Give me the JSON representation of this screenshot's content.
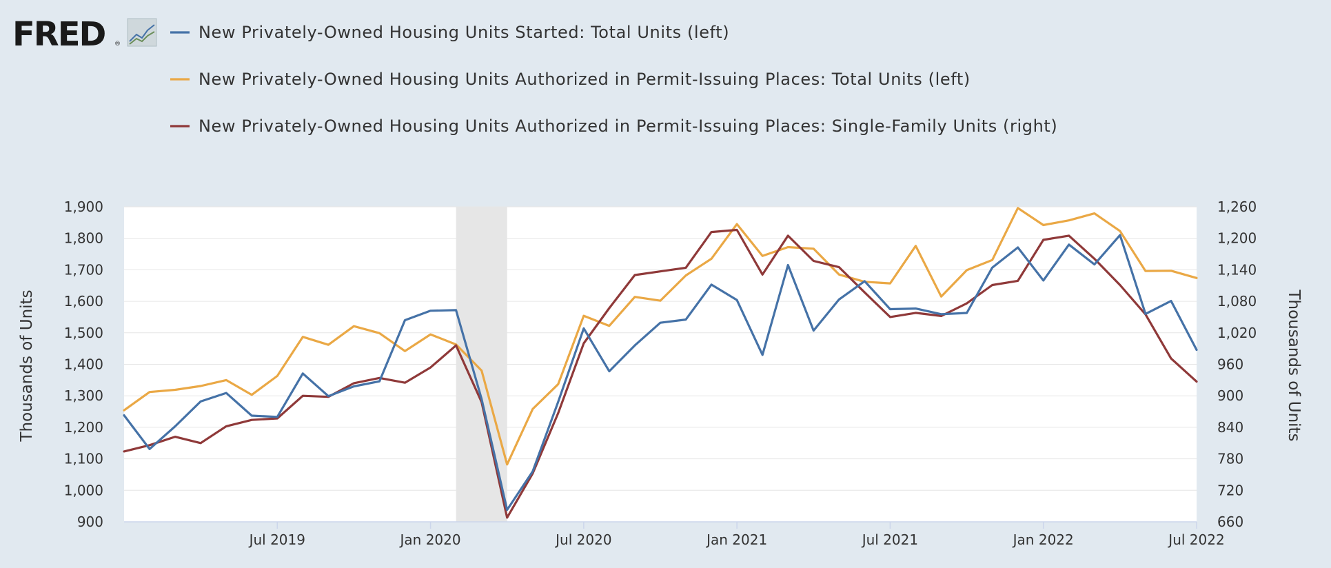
{
  "logo": {
    "text": "FRED",
    "registered": "®",
    "icon": "line-chart-icon"
  },
  "colors": {
    "background": "#e1e9f0",
    "plot_background": "#ffffff",
    "gridline": "#e6e6e6",
    "recession": "#e6e6e6",
    "series": [
      "#4572a7",
      "#eaa845",
      "#8f3939"
    ]
  },
  "chart_data": {
    "type": "line",
    "x": [
      "2019-01",
      "2019-02",
      "2019-03",
      "2019-04",
      "2019-05",
      "2019-06",
      "2019-07",
      "2019-08",
      "2019-09",
      "2019-10",
      "2019-11",
      "2019-12",
      "2020-01",
      "2020-02",
      "2020-03",
      "2020-04",
      "2020-05",
      "2020-06",
      "2020-07",
      "2020-08",
      "2020-09",
      "2020-10",
      "2020-11",
      "2020-12",
      "2021-01",
      "2021-02",
      "2021-03",
      "2021-04",
      "2021-05",
      "2021-06",
      "2021-07",
      "2021-08",
      "2021-09",
      "2021-10",
      "2021-11",
      "2021-12",
      "2022-01",
      "2022-02",
      "2022-03",
      "2022-04",
      "2022-05",
      "2022-06",
      "2022-07"
    ],
    "series": [
      {
        "name": "New Privately-Owned Housing Units Started: Total Units (left)",
        "axis": "left",
        "color": "#4572a7",
        "values": [
          1238,
          1131,
          1203,
          1282,
          1309,
          1237,
          1233,
          1371,
          1299,
          1330,
          1346,
          1540,
          1570,
          1572,
          1290,
          938,
          1060,
          1281,
          1514,
          1378,
          1460,
          1532,
          1542,
          1653,
          1604,
          1430,
          1715,
          1507,
          1606,
          1664,
          1575,
          1577,
          1559,
          1563,
          1707,
          1771,
          1666,
          1780,
          1717,
          1810,
          1560,
          1601,
          1446
        ]
      },
      {
        "name": "New Privately-Owned Housing Units Authorized in Permit-Issuing Places: Total Units (left)",
        "axis": "left",
        "color": "#eaa845",
        "values": [
          1254,
          1312,
          1319,
          1331,
          1350,
          1303,
          1363,
          1487,
          1462,
          1521,
          1499,
          1442,
          1495,
          1463,
          1380,
          1082,
          1258,
          1337,
          1554,
          1522,
          1614,
          1602,
          1682,
          1735,
          1845,
          1744,
          1772,
          1767,
          1685,
          1662,
          1657,
          1776,
          1615,
          1699,
          1731,
          1896,
          1842,
          1857,
          1879,
          1823,
          1696,
          1697,
          1674
        ]
      },
      {
        "name": "New Privately-Owned Housing Units Authorized in Permit-Issuing Places: Single-Family Units (right)",
        "axis": "right",
        "color": "#8f3939",
        "values": [
          794,
          806,
          822,
          810,
          842,
          854,
          857,
          900,
          898,
          924,
          934,
          925,
          954,
          996,
          888,
          668,
          752,
          867,
          1000,
          1067,
          1130,
          1137,
          1144,
          1212,
          1216,
          1131,
          1205,
          1157,
          1145,
          1097,
          1050,
          1058,
          1052,
          1076,
          1111,
          1119,
          1197,
          1205,
          1161,
          1111,
          1055,
          971,
          927
        ]
      }
    ],
    "recession": [
      "2020-02",
      "2020-04"
    ],
    "x_ticks": [
      "Jul 2019",
      "Jan 2020",
      "Jul 2020",
      "Jan 2021",
      "Jul 2021",
      "Jan 2022",
      "Jul 2022"
    ],
    "x_tick_dates": [
      "2019-07",
      "2020-01",
      "2020-07",
      "2021-01",
      "2021-07",
      "2022-01",
      "2022-07"
    ],
    "y_left": {
      "label": "Thousands of Units",
      "ylim": [
        900,
        1900
      ],
      "ticks": [
        "900",
        "1,000",
        "1,100",
        "1,200",
        "1,300",
        "1,400",
        "1,500",
        "1,600",
        "1,700",
        "1,800",
        "1,900"
      ]
    },
    "y_right": {
      "label": "Thousands of Units",
      "ylim": [
        660,
        1260
      ],
      "ticks": [
        "660",
        "720",
        "780",
        "840",
        "900",
        "960",
        "1,020",
        "1,080",
        "1,140",
        "1,200",
        "1,260"
      ]
    },
    "grid": true,
    "legend": "top-left"
  }
}
